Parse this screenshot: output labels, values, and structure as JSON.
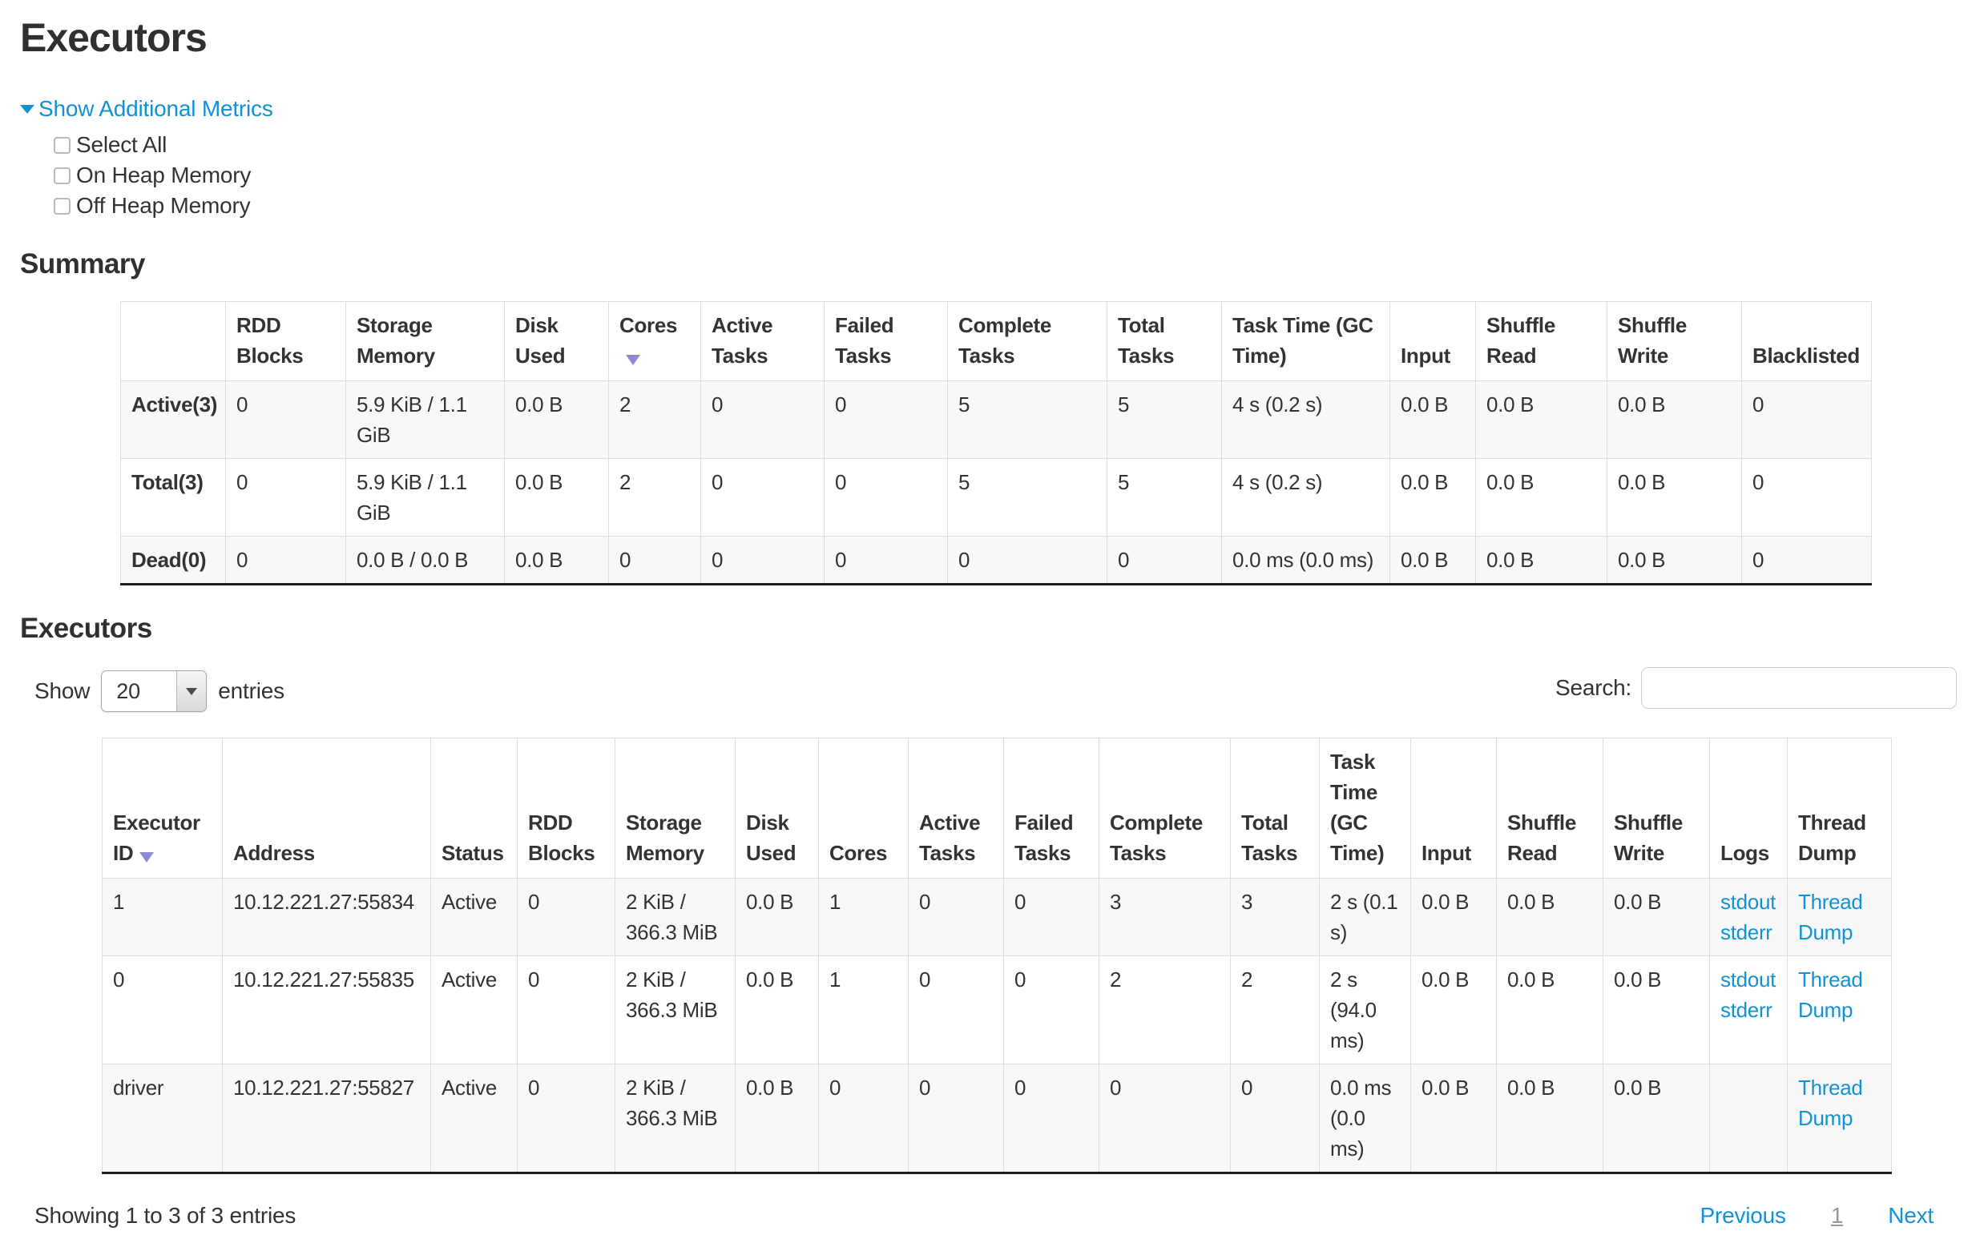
{
  "page": {
    "title": "Executors"
  },
  "metrics": {
    "toggle_label": "Show Additional Metrics",
    "checkboxes": [
      {
        "label": "Select All",
        "checked": false
      },
      {
        "label": "On Heap Memory",
        "checked": false
      },
      {
        "label": "Off Heap Memory",
        "checked": false
      }
    ]
  },
  "summary": {
    "heading": "Summary",
    "columns": [
      "",
      "RDD Blocks",
      "Storage Memory",
      "Disk Used",
      "Cores",
      "Active Tasks",
      "Failed Tasks",
      "Complete Tasks",
      "Total Tasks",
      "Task Time (GC Time)",
      "Input",
      "Shuffle Read",
      "Shuffle Write",
      "Blacklisted"
    ],
    "sorted_column_index": 4,
    "sort_direction": "desc",
    "rows": [
      {
        "label": "Active(3)",
        "cells": [
          "0",
          "5.9 KiB / 1.1 GiB",
          "0.0 B",
          "2",
          "0",
          "0",
          "5",
          "5",
          "4 s (0.2 s)",
          "0.0 B",
          "0.0 B",
          "0.0 B",
          "0"
        ]
      },
      {
        "label": "Total(3)",
        "cells": [
          "0",
          "5.9 KiB / 1.1 GiB",
          "0.0 B",
          "2",
          "0",
          "0",
          "5",
          "5",
          "4 s (0.2 s)",
          "0.0 B",
          "0.0 B",
          "0.0 B",
          "0"
        ]
      },
      {
        "label": "Dead(0)",
        "cells": [
          "0",
          "0.0 B / 0.0 B",
          "0.0 B",
          "0",
          "0",
          "0",
          "0",
          "0",
          "0.0 ms (0.0 ms)",
          "0.0 B",
          "0.0 B",
          "0.0 B",
          "0"
        ]
      }
    ]
  },
  "executors": {
    "heading": "Executors",
    "show_label": "Show",
    "page_size": "20",
    "entries_label": "entries",
    "search_label": "Search:",
    "search_value": "",
    "columns": [
      "Executor ID",
      "Address",
      "Status",
      "RDD Blocks",
      "Storage Memory",
      "Disk Used",
      "Cores",
      "Active Tasks",
      "Failed Tasks",
      "Complete Tasks",
      "Total Tasks",
      "Task Time (GC Time)",
      "Input",
      "Shuffle Read",
      "Shuffle Write",
      "Logs",
      "Thread Dump"
    ],
    "sorted_column_index": 0,
    "sort_direction": "desc",
    "rows": [
      {
        "id": "1",
        "address": "10.12.221.27:55834",
        "status": "Active",
        "rdd_blocks": "0",
        "storage_memory": "2 KiB / 366.3 MiB",
        "disk_used": "0.0 B",
        "cores": "1",
        "active_tasks": "0",
        "failed_tasks": "0",
        "complete_tasks": "3",
        "total_tasks": "3",
        "task_time": "2 s (0.1 s)",
        "input": "0.0 B",
        "shuffle_read": "0.0 B",
        "shuffle_write": "0.0 B",
        "logs": [
          "stdout",
          "stderr"
        ],
        "thread_dump": "Thread Dump"
      },
      {
        "id": "0",
        "address": "10.12.221.27:55835",
        "status": "Active",
        "rdd_blocks": "0",
        "storage_memory": "2 KiB / 366.3 MiB",
        "disk_used": "0.0 B",
        "cores": "1",
        "active_tasks": "0",
        "failed_tasks": "0",
        "complete_tasks": "2",
        "total_tasks": "2",
        "task_time": "2 s (94.0 ms)",
        "input": "0.0 B",
        "shuffle_read": "0.0 B",
        "shuffle_write": "0.0 B",
        "logs": [
          "stdout",
          "stderr"
        ],
        "thread_dump": "Thread Dump"
      },
      {
        "id": "driver",
        "address": "10.12.221.27:55827",
        "status": "Active",
        "rdd_blocks": "0",
        "storage_memory": "2 KiB / 366.3 MiB",
        "disk_used": "0.0 B",
        "cores": "0",
        "active_tasks": "0",
        "failed_tasks": "0",
        "complete_tasks": "0",
        "total_tasks": "0",
        "task_time": "0.0 ms (0.0 ms)",
        "input": "0.0 B",
        "shuffle_read": "0.0 B",
        "shuffle_write": "0.0 B",
        "logs": [],
        "thread_dump": "Thread Dump"
      }
    ],
    "footer": {
      "info": "Showing 1 to 3 of 3 entries",
      "previous": "Previous",
      "page": "1",
      "next": "Next"
    }
  },
  "colors": {
    "link_blue": "#1292d5",
    "sort_arrow": "#8a8ad8",
    "text": "#333333",
    "table_border": "#dddddd",
    "row_stripe": "#f8f8f8",
    "table_bottom_rule": "#1f1f1f"
  }
}
